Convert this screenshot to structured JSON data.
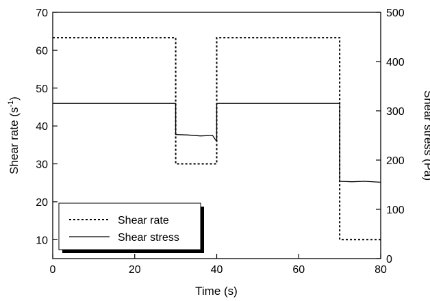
{
  "chart_data": {
    "type": "line",
    "xlabel": "Time (s)",
    "ylabel_left": "Shear rate (s-1)",
    "ylabel_left_base": "Shear rate (s",
    "ylabel_left_sup": "-1",
    "ylabel_left_tail": ")",
    "ylabel_right": "Shear stress (Pa)",
    "xlim": [
      0,
      80
    ],
    "ylim_left": [
      5,
      70
    ],
    "ylim_right": [
      0,
      500
    ],
    "x_ticks": [
      0,
      20,
      40,
      60,
      80
    ],
    "y_left_ticks": [
      10,
      20,
      30,
      40,
      50,
      60,
      70
    ],
    "y_right_ticks": [
      0,
      100,
      200,
      300,
      400,
      500
    ],
    "grid": false,
    "legend_position": "bottom-left",
    "series": [
      {
        "name": "Shear rate",
        "axis": "left",
        "style": "dotted",
        "x": [
          0,
          30,
          30,
          40,
          40,
          70,
          70,
          80
        ],
        "y": [
          63.3,
          63.3,
          30,
          30,
          63.3,
          63.3,
          10,
          10
        ]
      },
      {
        "name": "Shear stress",
        "axis": "right",
        "style": "solid",
        "x": [
          0,
          30,
          30,
          33,
          36,
          39,
          39.8,
          40,
          40,
          70,
          70,
          73,
          76,
          80
        ],
        "y": [
          315,
          315,
          252,
          251,
          249,
          250,
          240,
          240,
          315,
          315,
          157,
          156,
          157,
          155
        ]
      }
    ]
  }
}
